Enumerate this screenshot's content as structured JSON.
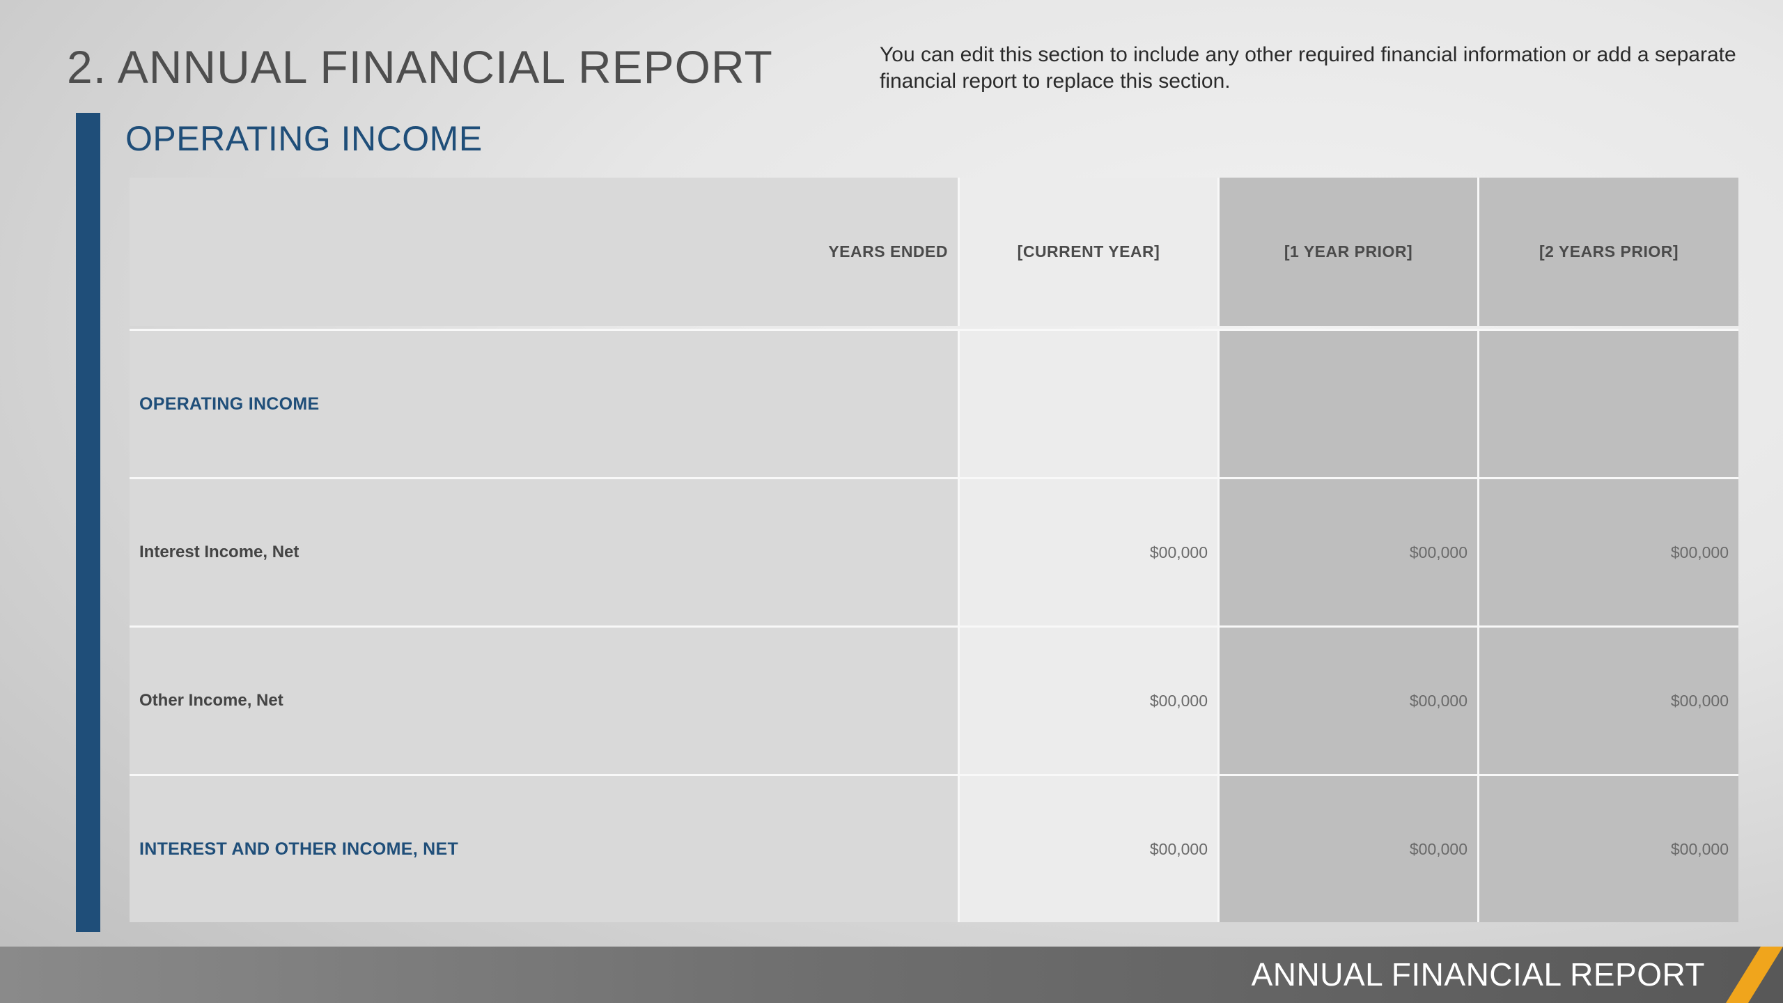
{
  "page": {
    "title": "2. ANNUAL FINANCIAL REPORT",
    "intro": "You can edit this section to include any other required financial information or add a separate financial report to replace this section."
  },
  "section": {
    "title": "OPERATING INCOME"
  },
  "table": {
    "headers": [
      "YEARS ENDED",
      "[CURRENT YEAR]",
      "[1 YEAR PRIOR]",
      "[2 YEARS PRIOR]"
    ],
    "rows": [
      {
        "label": "OPERATING INCOME",
        "values": [
          "",
          "",
          ""
        ]
      },
      {
        "label": "Interest Income, Net",
        "values": [
          "$00,000",
          "$00,000",
          "$00,000"
        ]
      },
      {
        "label": "Other Income, Net",
        "values": [
          "$00,000",
          "$00,000",
          "$00,000"
        ]
      },
      {
        "label": "INTEREST AND OTHER INCOME, NET",
        "values": [
          "$00,000",
          "$00,000",
          "$00,000"
        ]
      }
    ]
  },
  "footer": {
    "title": "ANNUAL FINANCIAL REPORT"
  },
  "colors": {
    "accent_blue": "#1f4e79",
    "footer_accent": "#f0a51c"
  }
}
